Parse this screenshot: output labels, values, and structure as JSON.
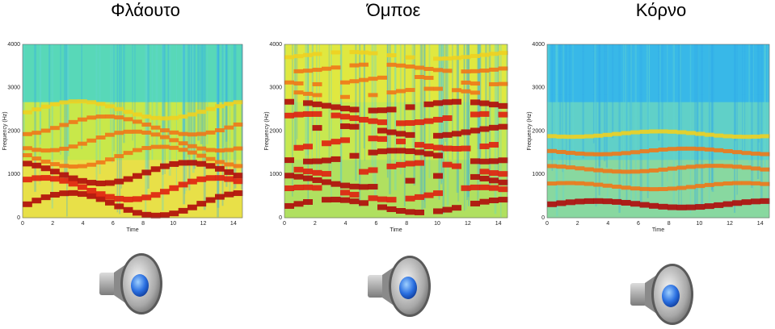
{
  "panels": [
    {
      "title": "Φλάουτο",
      "y_label": "Frequency (Hz)",
      "x_label": "Time",
      "yticks": [
        "0",
        "1000",
        "2000",
        "3000",
        "4000"
      ],
      "xticks": [
        "0",
        "2",
        "4",
        "6",
        "8",
        "10",
        "12",
        "14"
      ]
    },
    {
      "title": "Όμποε",
      "y_label": "Frequency (Hz)",
      "x_label": "Time",
      "yticks": [
        "0",
        "1000",
        "2000",
        "3000",
        "4000"
      ],
      "xticks": [
        "0",
        "2",
        "4",
        "6",
        "8",
        "10",
        "12",
        "14"
      ]
    },
    {
      "title": "Κόρνο",
      "y_label": "Frequency (Hz)",
      "x_label": "Time",
      "yticks": [
        "0",
        "1000",
        "2000",
        "3000",
        "4000"
      ],
      "xticks": [
        "0",
        "2",
        "4",
        "6",
        "8",
        "10",
        "12",
        "14"
      ]
    }
  ]
}
